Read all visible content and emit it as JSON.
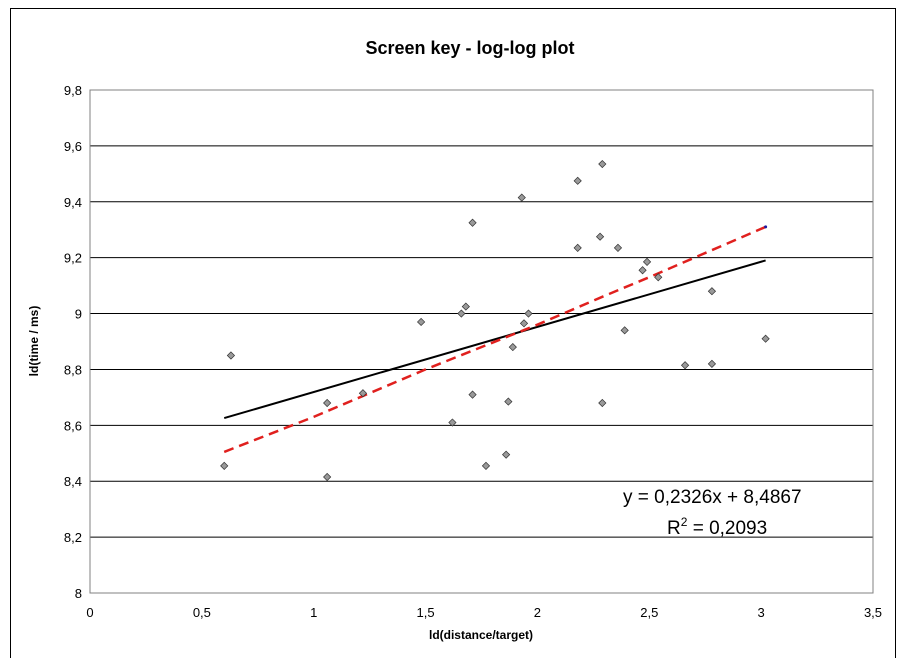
{
  "chart_data": {
    "type": "scatter",
    "title": "Screen key - log-log plot",
    "xlabel": "ld(distance/target)",
    "ylabel": "ld(time / ms)",
    "xlim": [
      0,
      3.5
    ],
    "ylim": [
      8,
      9.8
    ],
    "x_ticks": [
      "0",
      "0,5",
      "1",
      "1,5",
      "2",
      "2,5",
      "3",
      "3,5"
    ],
    "y_ticks": [
      "8",
      "8,2",
      "8,4",
      "8,6",
      "8,8",
      "9",
      "9,2",
      "9,4",
      "9,6",
      "9,8"
    ],
    "grid": "horizontal",
    "colors": {
      "points": "#999999",
      "trendline": "#000000",
      "fit_curve": "#e0201e"
    },
    "points": [
      {
        "x": 0.6,
        "y": 8.455
      },
      {
        "x": 0.63,
        "y": 8.85
      },
      {
        "x": 1.06,
        "y": 8.68
      },
      {
        "x": 1.06,
        "y": 8.415
      },
      {
        "x": 1.22,
        "y": 8.715
      },
      {
        "x": 1.48,
        "y": 8.97
      },
      {
        "x": 1.62,
        "y": 8.61
      },
      {
        "x": 1.66,
        "y": 9.0
      },
      {
        "x": 1.68,
        "y": 9.025
      },
      {
        "x": 1.71,
        "y": 9.325
      },
      {
        "x": 1.71,
        "y": 8.71
      },
      {
        "x": 1.77,
        "y": 8.455
      },
      {
        "x": 1.86,
        "y": 8.495
      },
      {
        "x": 1.87,
        "y": 8.685
      },
      {
        "x": 1.89,
        "y": 8.88
      },
      {
        "x": 1.93,
        "y": 9.415
      },
      {
        "x": 1.94,
        "y": 8.965
      },
      {
        "x": 1.96,
        "y": 9.0
      },
      {
        "x": 2.18,
        "y": 9.475
      },
      {
        "x": 2.18,
        "y": 9.235
      },
      {
        "x": 2.28,
        "y": 9.275
      },
      {
        "x": 2.29,
        "y": 9.535
      },
      {
        "x": 2.29,
        "y": 8.68
      },
      {
        "x": 2.36,
        "y": 9.235
      },
      {
        "x": 2.39,
        "y": 8.94
      },
      {
        "x": 2.47,
        "y": 9.155
      },
      {
        "x": 2.49,
        "y": 9.185
      },
      {
        "x": 2.54,
        "y": 9.13
      },
      {
        "x": 2.66,
        "y": 8.815
      },
      {
        "x": 2.78,
        "y": 9.08
      },
      {
        "x": 2.78,
        "y": 8.82
      },
      {
        "x": 3.02,
        "y": 8.91
      }
    ],
    "trendline": {
      "x": [
        0.6,
        3.02
      ],
      "y": [
        8.626,
        9.19
      ]
    },
    "fit_curve": {
      "x": [
        0.6,
        1.0,
        1.5,
        2.0,
        2.29,
        2.5,
        3.02
      ],
      "y": [
        8.505,
        8.63,
        8.8,
        8.96,
        9.06,
        9.13,
        9.31
      ]
    },
    "equation": "y = 0,2326x + 8,4867",
    "r2_prefix": "R",
    "r2_sup": "2",
    "r2_rest": " = 0,2093"
  }
}
